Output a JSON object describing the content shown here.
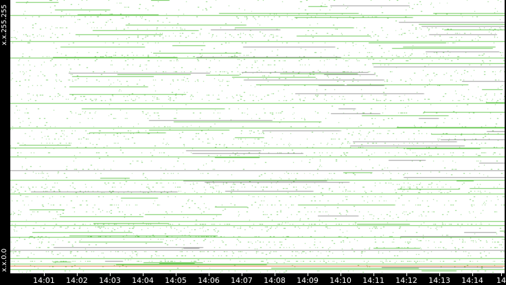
{
  "chart_data": {
    "type": "scatter",
    "title": "",
    "xlabel": "",
    "ylabel": "",
    "x_tick_labels": [
      "14:01",
      "14:02",
      "14:03",
      "14:04",
      "14:05",
      "14:06",
      "14:07",
      "14:08",
      "14:09",
      "14:10",
      "14:11",
      "14:12",
      "14:13",
      "14:14",
      "14"
    ],
    "y_tick_labels": {
      "top": "x.x.255.255",
      "bottom": "x.x.0.0"
    },
    "grid": false,
    "legend": "none",
    "colors": {
      "points": "#7ccf6a",
      "lines": "#6dc95a",
      "gray_lines": "#9a9a9a",
      "highlight_line": "#e07030",
      "background": "#ffffff",
      "frame": "#000000"
    }
  }
}
